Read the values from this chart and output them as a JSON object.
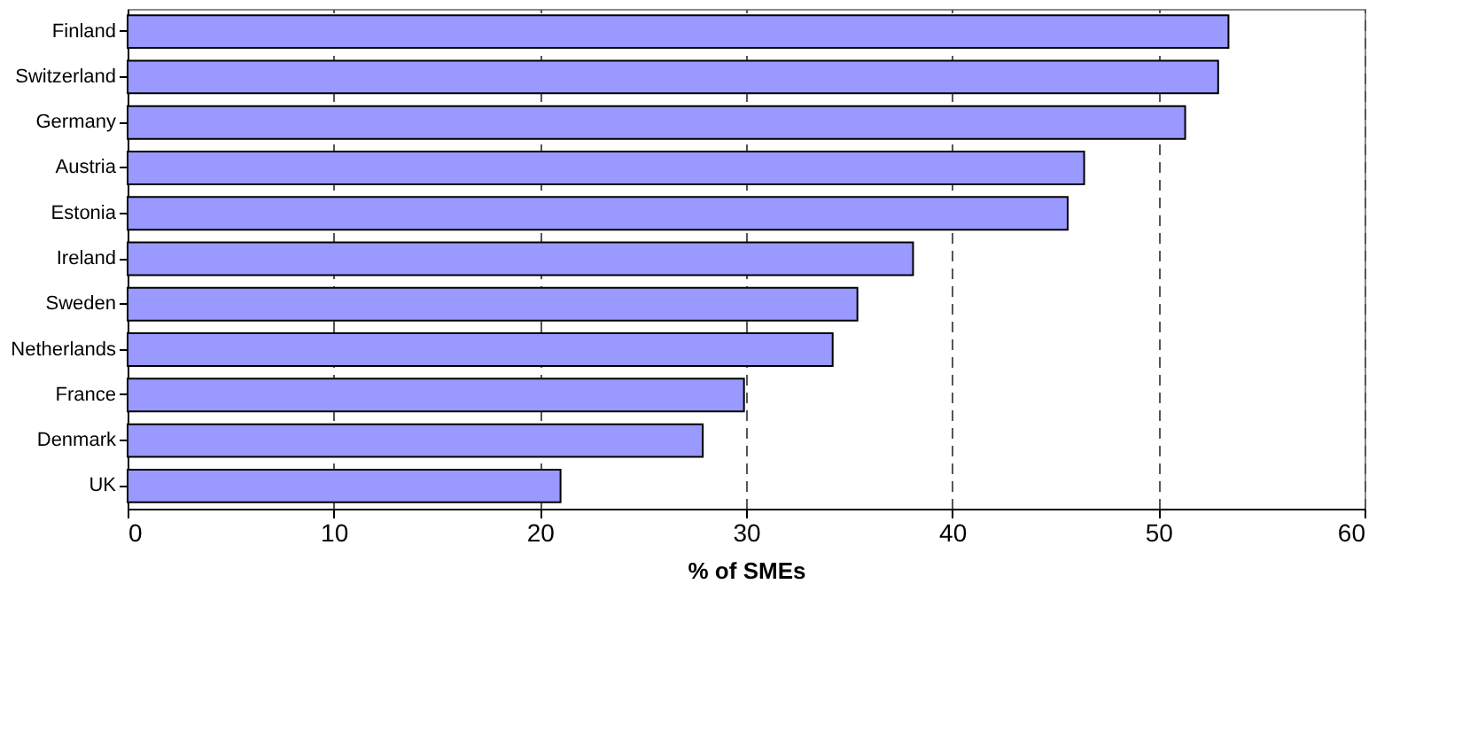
{
  "chart_data": {
    "type": "bar",
    "orientation": "horizontal",
    "xlabel": "% of SMEs",
    "categories": [
      "Finland",
      "Switzerland",
      "Germany",
      "Austria",
      "Estonia",
      "Ireland",
      "Sweden",
      "Netherlands",
      "France",
      "Denmark",
      "UK"
    ],
    "values": [
      53.4,
      52.9,
      51.3,
      46.4,
      45.6,
      38.1,
      35.4,
      34.2,
      29.9,
      27.9,
      21.0
    ],
    "color": "#9999ff",
    "xlim": [
      0,
      60
    ],
    "xticks": [
      0,
      10,
      20,
      30,
      40,
      50,
      60
    ],
    "grid": "x",
    "line_style": "dashed"
  }
}
